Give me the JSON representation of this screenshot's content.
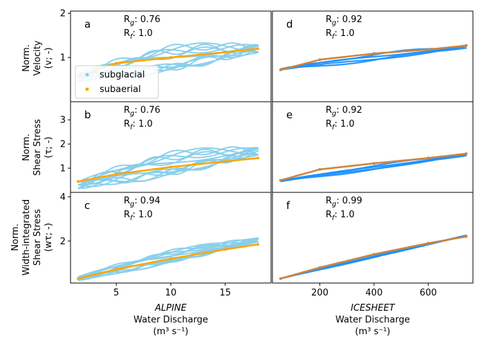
{
  "colors": {
    "subglacial": "#87CEEB",
    "subglacial_icesheet": "#1E90FF",
    "subaerial": "#FFA500",
    "subaerial_icesheet": "#CD853F"
  },
  "legend": {
    "subglacial": "subglacial",
    "subaerial": "subaerial"
  },
  "rows": [
    {
      "ylabel": [
        "Norm.",
        "Velocity",
        "(v; -)"
      ]
    },
    {
      "ylabel": [
        "Norm.",
        "Shear Stress",
        "(τ; -)"
      ]
    },
    {
      "ylabel": [
        "Norm.",
        "Width-integrated",
        "Shear Stress",
        "(wτ; -)"
      ]
    }
  ],
  "columns": [
    {
      "xlabel": [
        "ALPINE",
        "Water Discharge",
        "(m³ s⁻¹)"
      ],
      "xlim": [
        0.8,
        19.2
      ],
      "xticks": [
        5,
        10,
        15
      ]
    },
    {
      "xlabel": [
        "ICESHEET",
        "Water Discharge",
        "(m³ s⁻¹)"
      ],
      "xlim": [
        25,
        765
      ],
      "xticks": [
        200,
        400,
        600
      ]
    }
  ],
  "chart_data": [
    {
      "type": "scatter",
      "panel": "a",
      "row": 0,
      "col": 0,
      "Rg": "0.76",
      "Rf": "1.0",
      "ylim": [
        0.0,
        2.05
      ],
      "yticks": [
        1,
        2
      ],
      "legend_placement": "lower-left",
      "series": [
        {
          "name": "subglacial",
          "kind": "loops",
          "x_range": [
            1.5,
            18
          ],
          "base": [
            0.55,
            1.2
          ],
          "amp": 0.35,
          "loops": 6
        },
        {
          "name": "subaerial",
          "kind": "curve",
          "x": [
            1.5,
            5,
            10,
            15,
            18
          ],
          "y": [
            0.57,
            0.87,
            1.0,
            1.12,
            1.2
          ]
        }
      ]
    },
    {
      "type": "scatter",
      "panel": "d",
      "row": 0,
      "col": 1,
      "Rg": "0.92",
      "Rf": "1.0",
      "ylim": [
        0.0,
        2.05
      ],
      "yticks": [],
      "series": [
        {
          "name": "subglacial",
          "kind": "loops",
          "x_range": [
            55,
            740
          ],
          "base": [
            0.72,
            1.24
          ],
          "amp": 0.1,
          "loops": 2
        },
        {
          "name": "subaerial",
          "kind": "curve",
          "x": [
            55,
            200,
            400,
            600,
            740
          ],
          "y": [
            0.72,
            0.95,
            1.09,
            1.18,
            1.27
          ]
        }
      ]
    },
    {
      "type": "scatter",
      "panel": "b",
      "row": 1,
      "col": 0,
      "Rg": "0.76",
      "Rf": "1.0",
      "ylim": [
        0.0,
        3.75
      ],
      "yticks": [
        1,
        2,
        3
      ],
      "series": [
        {
          "name": "subglacial",
          "kind": "loops",
          "x_range": [
            1.5,
            18
          ],
          "base": [
            0.3,
            1.7
          ],
          "amp": 0.6,
          "loops": 6
        },
        {
          "name": "subaerial",
          "kind": "curve",
          "x": [
            1.5,
            5,
            10,
            15,
            18
          ],
          "y": [
            0.45,
            0.75,
            1.05,
            1.28,
            1.42
          ]
        }
      ]
    },
    {
      "type": "scatter",
      "panel": "e",
      "row": 1,
      "col": 1,
      "Rg": "0.92",
      "Rf": "1.0",
      "ylim": [
        0.0,
        3.75
      ],
      "yticks": [],
      "series": [
        {
          "name": "subglacial",
          "kind": "loops",
          "x_range": [
            55,
            740
          ],
          "base": [
            0.45,
            1.55
          ],
          "amp": 0.12,
          "loops": 2
        },
        {
          "name": "subaerial",
          "kind": "curve",
          "x": [
            55,
            200,
            400,
            600,
            740
          ],
          "y": [
            0.5,
            0.95,
            1.2,
            1.42,
            1.6
          ]
        }
      ]
    },
    {
      "type": "scatter",
      "panel": "c",
      "row": 2,
      "col": 0,
      "Rg": "0.94",
      "Rf": "1.0",
      "ylim": [
        0.1,
        4.2
      ],
      "yticks": [
        2,
        4
      ],
      "series": [
        {
          "name": "subglacial",
          "kind": "loops",
          "x_range": [
            1.5,
            18
          ],
          "base": [
            0.3,
            2.05
          ],
          "amp": 0.35,
          "loops": 6
        },
        {
          "name": "subaerial",
          "kind": "curve",
          "x": [
            1.5,
            5,
            10,
            15,
            18
          ],
          "y": [
            0.3,
            0.72,
            1.2,
            1.62,
            1.85
          ]
        }
      ]
    },
    {
      "type": "scatter",
      "panel": "f",
      "row": 2,
      "col": 1,
      "Rg": "0.99",
      "Rf": "1.0",
      "ylim": [
        0.1,
        4.2
      ],
      "yticks": [],
      "series": [
        {
          "name": "subglacial",
          "kind": "loops",
          "x_range": [
            55,
            740
          ],
          "base": [
            0.3,
            2.25
          ],
          "amp": 0.05,
          "loops": 2
        },
        {
          "name": "subaerial",
          "kind": "curve",
          "x": [
            55,
            200,
            400,
            600,
            740
          ],
          "y": [
            0.3,
            0.8,
            1.4,
            1.9,
            2.2
          ]
        }
      ]
    }
  ]
}
